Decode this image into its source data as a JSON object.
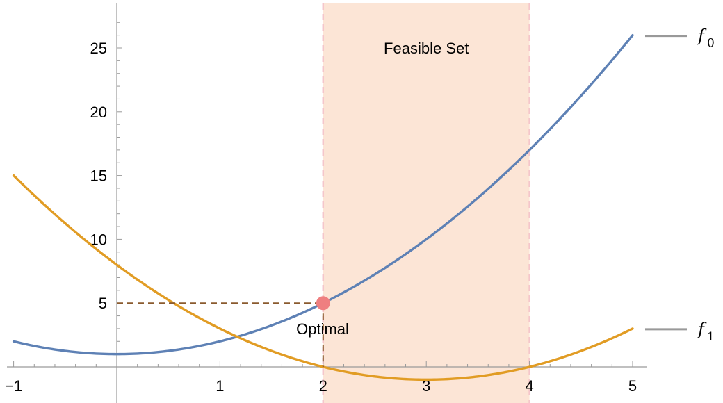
{
  "chart_data": {
    "type": "line",
    "title": "",
    "xlabel": "",
    "ylabel": "",
    "xlim": [
      -1,
      5.1
    ],
    "ylim": [
      -2.8,
      28
    ],
    "x_ticks": [
      -1,
      1,
      2,
      3,
      4,
      5
    ],
    "x_tick_labels": [
      "−1",
      "1",
      "2",
      "3",
      "4",
      "5"
    ],
    "y_ticks": [
      5,
      10,
      15,
      20,
      25
    ],
    "y_tick_labels": [
      "5",
      "10",
      "15",
      "20",
      "25"
    ],
    "grid": false,
    "legend_placement": "right",
    "series": [
      {
        "name": "f",
        "subscript": "0",
        "color": "#5e81b5",
        "formula": "x^2 + 1",
        "x": [
          -1,
          -0.5,
          0,
          0.5,
          1,
          1.5,
          2,
          2.5,
          3,
          3.5,
          4,
          4.5,
          5
        ],
        "y": [
          2,
          1.25,
          1,
          1.25,
          2,
          3.25,
          5,
          7.25,
          10,
          13.25,
          17,
          21.25,
          26
        ]
      },
      {
        "name": "f",
        "subscript": "1",
        "color": "#e19c24",
        "formula": "(x-2)(x-4)",
        "x": [
          -1,
          -0.5,
          0,
          0.5,
          1,
          1.5,
          2,
          2.5,
          3,
          3.5,
          4,
          4.5,
          5
        ],
        "y": [
          15,
          11.25,
          8,
          5.25,
          3,
          1.25,
          0,
          -0.75,
          -1,
          -0.75,
          0,
          1.25,
          3
        ]
      }
    ],
    "feasible_region": {
      "x_min": 2,
      "x_max": 4,
      "label": "Feasible Set",
      "fill": "#fce5d6",
      "border": "#f5c6cb"
    },
    "optimal_point": {
      "x": 2,
      "y": 5,
      "label": "Optimal",
      "color": "#ef7f80"
    }
  }
}
